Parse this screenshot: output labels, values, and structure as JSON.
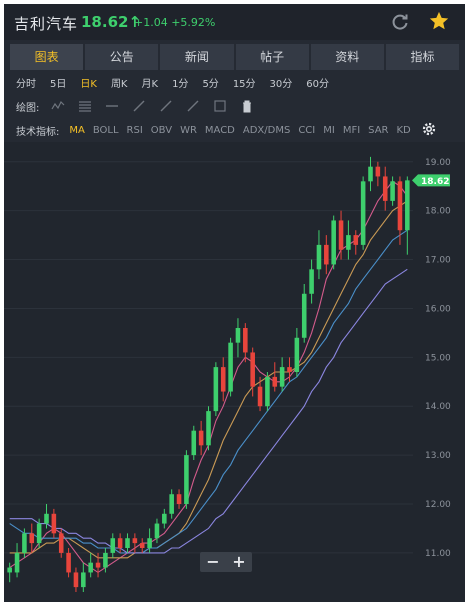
{
  "header": {
    "stock_name": "吉利汽车",
    "price": "18.62↑",
    "change": "+1.04 +5.92%",
    "refresh_icon": "refresh-icon",
    "favorite_icon": "star-icon"
  },
  "tabs": [
    {
      "label": "图表",
      "active": true
    },
    {
      "label": "公告",
      "active": false
    },
    {
      "label": "新闻",
      "active": false
    },
    {
      "label": "帖子",
      "active": false
    },
    {
      "label": "资料",
      "active": false
    },
    {
      "label": "指标",
      "active": false
    }
  ],
  "periods": [
    {
      "label": "分时",
      "active": false
    },
    {
      "label": "5日",
      "active": false
    },
    {
      "label": "日K",
      "active": true
    },
    {
      "label": "周K",
      "active": false
    },
    {
      "label": "月K",
      "active": false
    },
    {
      "label": "1分",
      "active": false
    },
    {
      "label": "5分",
      "active": false
    },
    {
      "label": "15分",
      "active": false
    },
    {
      "label": "30分",
      "active": false
    },
    {
      "label": "60分",
      "active": false
    }
  ],
  "draw": {
    "label": "绘图:",
    "tools": [
      "zigzag-tool-icon",
      "parallel-lines-icon",
      "horizontal-line-icon",
      "trend-line-icon",
      "ray-line-icon",
      "extended-line-icon",
      "rectangle-icon",
      "trash-icon"
    ]
  },
  "indicators": {
    "label": "技术指标:",
    "items": [
      {
        "label": "MA",
        "active": true
      },
      {
        "label": "BOLL",
        "active": false
      },
      {
        "label": "RSI",
        "active": false
      },
      {
        "label": "OBV",
        "active": false
      },
      {
        "label": "WR",
        "active": false
      },
      {
        "label": "MACD",
        "active": false
      },
      {
        "label": "ADX/DMS",
        "active": false
      },
      {
        "label": "CCI",
        "active": false
      },
      {
        "label": "MI",
        "active": false
      },
      {
        "label": "MFI",
        "active": false
      },
      {
        "label": "SAR",
        "active": false
      },
      {
        "label": "KD",
        "active": false
      }
    ]
  },
  "zoom": {
    "minus": "−",
    "plus": "+"
  },
  "colors": {
    "up": "#3ecf6d",
    "down": "#e8453c",
    "accent": "#f4c027",
    "ma5": "#d35b8c",
    "ma10": "#c99a55",
    "ma20": "#4a8fc9",
    "ma30": "#8b86e0"
  },
  "chart_data": {
    "type": "candlestick",
    "price_label": "18.62",
    "y_ticks": [
      "19.00",
      "18.00",
      "17.00",
      "16.00",
      "15.00",
      "14.00",
      "13.00",
      "12.00",
      "11.00"
    ],
    "ylim": [
      10.2,
      19.2
    ],
    "candles": [
      [
        10.6,
        10.7,
        10.4,
        10.8
      ],
      [
        10.6,
        11.0,
        10.5,
        11.2
      ],
      [
        11.0,
        11.4,
        10.9,
        11.5
      ],
      [
        11.4,
        11.2,
        11.0,
        11.6
      ],
      [
        11.2,
        11.6,
        11.1,
        11.7
      ],
      [
        11.6,
        11.8,
        11.5,
        12.0
      ],
      [
        11.8,
        11.4,
        11.3,
        11.9
      ],
      [
        11.4,
        11.0,
        10.9,
        11.5
      ],
      [
        11.0,
        10.6,
        10.5,
        11.1
      ],
      [
        10.6,
        10.3,
        10.2,
        10.7
      ],
      [
        10.3,
        10.6,
        10.2,
        10.8
      ],
      [
        10.6,
        10.8,
        10.5,
        11.0
      ],
      [
        10.8,
        10.7,
        10.5,
        11.0
      ],
      [
        10.7,
        11.0,
        10.6,
        11.1
      ],
      [
        11.0,
        11.3,
        10.9,
        11.4
      ],
      [
        11.3,
        11.1,
        11.0,
        11.4
      ],
      [
        11.1,
        11.3,
        11.0,
        11.4
      ],
      [
        11.3,
        11.2,
        11.0,
        11.4
      ],
      [
        11.2,
        11.1,
        11.0,
        11.3
      ],
      [
        11.1,
        11.3,
        11.0,
        11.5
      ],
      [
        11.3,
        11.6,
        11.2,
        11.7
      ],
      [
        11.6,
        11.8,
        11.5,
        11.9
      ],
      [
        11.8,
        12.2,
        11.7,
        12.3
      ],
      [
        12.2,
        12.0,
        11.9,
        12.3
      ],
      [
        12.0,
        13.0,
        11.9,
        13.1
      ],
      [
        13.0,
        13.5,
        12.9,
        13.6
      ],
      [
        13.5,
        13.2,
        13.0,
        13.7
      ],
      [
        13.2,
        13.9,
        13.1,
        14.0
      ],
      [
        13.9,
        14.8,
        13.8,
        14.9
      ],
      [
        14.8,
        14.3,
        14.1,
        15.0
      ],
      [
        14.3,
        15.3,
        14.2,
        15.4
      ],
      [
        15.3,
        15.6,
        15.0,
        15.8
      ],
      [
        15.6,
        15.1,
        14.9,
        15.7
      ],
      [
        15.1,
        14.4,
        14.2,
        15.2
      ],
      [
        14.4,
        14.0,
        13.9,
        14.6
      ],
      [
        14.0,
        14.6,
        13.9,
        14.7
      ],
      [
        14.6,
        14.4,
        14.3,
        14.9
      ],
      [
        14.4,
        14.8,
        14.3,
        15.0
      ],
      [
        14.8,
        14.7,
        14.5,
        15.0
      ],
      [
        14.7,
        15.4,
        14.6,
        15.6
      ],
      [
        15.4,
        16.3,
        15.3,
        16.5
      ],
      [
        16.3,
        16.8,
        16.1,
        17.0
      ],
      [
        16.8,
        17.3,
        16.6,
        17.6
      ],
      [
        17.3,
        16.9,
        16.7,
        17.5
      ],
      [
        16.9,
        17.8,
        16.8,
        17.9
      ],
      [
        17.8,
        17.2,
        17.0,
        18.0
      ],
      [
        17.2,
        17.5,
        17.0,
        17.8
      ],
      [
        17.5,
        17.3,
        17.1,
        17.6
      ],
      [
        17.3,
        18.6,
        17.2,
        18.7
      ],
      [
        18.6,
        18.9,
        18.4,
        19.1
      ],
      [
        18.9,
        18.7,
        18.5,
        19.0
      ],
      [
        18.7,
        18.2,
        18.0,
        18.9
      ],
      [
        18.2,
        18.6,
        18.1,
        18.7
      ],
      [
        18.6,
        17.6,
        17.3,
        18.7
      ],
      [
        17.6,
        18.62,
        17.1,
        18.7
      ]
    ],
    "ma_series": [
      {
        "color": "ma5",
        "values": [
          10.7,
          10.8,
          10.9,
          11.0,
          11.2,
          11.4,
          11.5,
          11.4,
          11.2,
          11.0,
          10.8,
          10.7,
          10.6,
          10.7,
          10.8,
          10.9,
          11.0,
          11.1,
          11.2,
          11.2,
          11.3,
          11.4,
          11.6,
          11.8,
          12.0,
          12.5,
          12.9,
          13.2,
          13.7,
          14.0,
          14.4,
          14.8,
          15.0,
          14.9,
          14.7,
          14.6,
          14.5,
          14.5,
          14.6,
          14.8,
          15.1,
          15.5,
          16.0,
          16.6,
          16.9,
          17.2,
          17.3,
          17.4,
          17.6,
          17.9,
          18.2,
          18.4,
          18.6,
          18.5,
          18.3
        ]
      },
      {
        "color": "ma10",
        "values": [
          11.0,
          11.0,
          11.0,
          11.0,
          11.1,
          11.2,
          11.2,
          11.3,
          11.3,
          11.2,
          11.1,
          11.0,
          10.9,
          10.9,
          10.9,
          10.9,
          10.9,
          11.0,
          11.0,
          11.1,
          11.1,
          11.2,
          11.3,
          11.4,
          11.6,
          11.9,
          12.2,
          12.5,
          12.9,
          13.3,
          13.6,
          13.9,
          14.2,
          14.4,
          14.5,
          14.6,
          14.7,
          14.7,
          14.7,
          14.8,
          14.9,
          15.1,
          15.4,
          15.7,
          16.0,
          16.3,
          16.6,
          16.9,
          17.1,
          17.4,
          17.6,
          17.8,
          18.0,
          18.1,
          18.2
        ]
      },
      {
        "color": "ma20",
        "values": [
          11.6,
          11.5,
          11.4,
          11.4,
          11.3,
          11.3,
          11.3,
          11.3,
          11.3,
          11.3,
          11.2,
          11.2,
          11.1,
          11.1,
          11.1,
          11.0,
          11.0,
          11.0,
          11.0,
          11.1,
          11.1,
          11.2,
          11.3,
          11.4,
          11.5,
          11.7,
          11.9,
          12.1,
          12.3,
          12.6,
          12.8,
          13.1,
          13.3,
          13.5,
          13.7,
          13.9,
          14.1,
          14.3,
          14.5,
          14.6,
          14.8,
          15.0,
          15.2,
          15.4,
          15.7,
          15.9,
          16.1,
          16.4,
          16.6,
          16.8,
          17.0,
          17.2,
          17.4,
          17.5,
          17.6
        ]
      },
      {
        "color": "ma30",
        "values": [
          11.7,
          11.7,
          11.7,
          11.7,
          11.6,
          11.6,
          11.5,
          11.5,
          11.4,
          11.4,
          11.3,
          11.3,
          11.2,
          11.2,
          11.1,
          11.1,
          11.0,
          11.0,
          11.0,
          11.0,
          11.0,
          11.0,
          11.1,
          11.1,
          11.2,
          11.3,
          11.4,
          11.5,
          11.7,
          11.8,
          12.0,
          12.2,
          12.4,
          12.6,
          12.8,
          13.0,
          13.2,
          13.4,
          13.6,
          13.8,
          14.0,
          14.3,
          14.5,
          14.8,
          15.0,
          15.3,
          15.5,
          15.7,
          15.9,
          16.1,
          16.3,
          16.5,
          16.6,
          16.7,
          16.8
        ]
      }
    ]
  }
}
